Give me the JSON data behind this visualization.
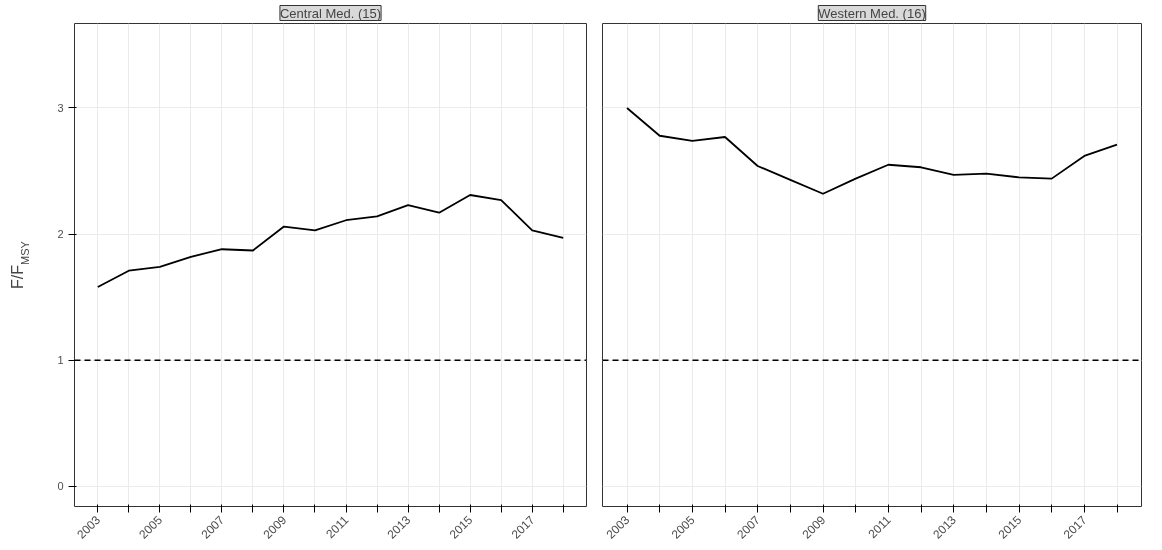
{
  "chart_data": [
    {
      "type": "line",
      "title": "Central Med. (15)",
      "ylabel": "F/F$_{MSY}$",
      "x": [
        2003,
        2004,
        2005,
        2006,
        2007,
        2008,
        2009,
        2010,
        2011,
        2012,
        2013,
        2014,
        2015,
        2016,
        2017,
        2018
      ],
      "series": [
        {
          "color": "#000000",
          "values": [
            1.58,
            1.71,
            1.74,
            1.82,
            1.88,
            1.87,
            2.06,
            2.03,
            2.11,
            2.14,
            2.23,
            2.17,
            2.31,
            2.27,
            2.03,
            1.97
          ]
        }
      ],
      "xlim": [
        2002.25,
        2018.75
      ],
      "ylim": [
        -0.16,
        3.67
      ],
      "xticks": [
        2003,
        {
          "value": 2004,
          "label": null
        },
        2005,
        {
          "value": 2006,
          "label": null
        },
        2007,
        {
          "value": 2008,
          "label": null
        },
        2009,
        {
          "value": 2010,
          "label": null
        },
        2011,
        {
          "value": 2012,
          "label": null
        },
        2013,
        {
          "value": 2014,
          "label": null
        },
        2015,
        {
          "value": 2016,
          "label": null
        },
        2017,
        {
          "value": 2018,
          "label": null
        }
      ],
      "yticks": [
        0,
        1,
        2,
        3
      ],
      "grid": true,
      "ref_lines": [
        {
          "axis": "y",
          "value": 1,
          "label": null,
          "color": "#000000",
          "line_style": "dashed"
        }
      ]
    },
    {
      "type": "line",
      "title": "Western Med. (16)",
      "x": [
        2003,
        2004,
        2005,
        2006,
        2007,
        2008,
        2009,
        2010,
        2011,
        2012,
        2013,
        2014,
        2015,
        2016,
        2017,
        2018
      ],
      "series": [
        {
          "color": "#000000",
          "values": [
            3.0,
            2.78,
            2.74,
            2.77,
            2.54,
            2.43,
            2.32,
            2.44,
            2.55,
            2.53,
            2.47,
            2.48,
            2.45,
            2.44,
            2.62,
            2.71
          ]
        }
      ],
      "xlim": [
        2002.25,
        2018.75
      ],
      "ylim": [
        -0.16,
        3.67
      ],
      "xticks": [
        2003,
        {
          "value": 2004,
          "label": null
        },
        2005,
        {
          "value": 2006,
          "label": null
        },
        2007,
        {
          "value": 2008,
          "label": null
        },
        2009,
        {
          "value": 2010,
          "label": null
        },
        2011,
        {
          "value": 2012,
          "label": null
        },
        2013,
        {
          "value": 2014,
          "label": null
        },
        2015,
        {
          "value": 2016,
          "label": null
        },
        2017,
        {
          "value": 2018,
          "label": null
        }
      ],
      "yticks": [
        0,
        1,
        2,
        3
      ],
      "grid": true,
      "tick_labels": "x",
      "ref_lines": [
        {
          "axis": "y",
          "value": 1,
          "label": null,
          "color": "#000000",
          "line_style": "dashed"
        }
      ]
    }
  ]
}
